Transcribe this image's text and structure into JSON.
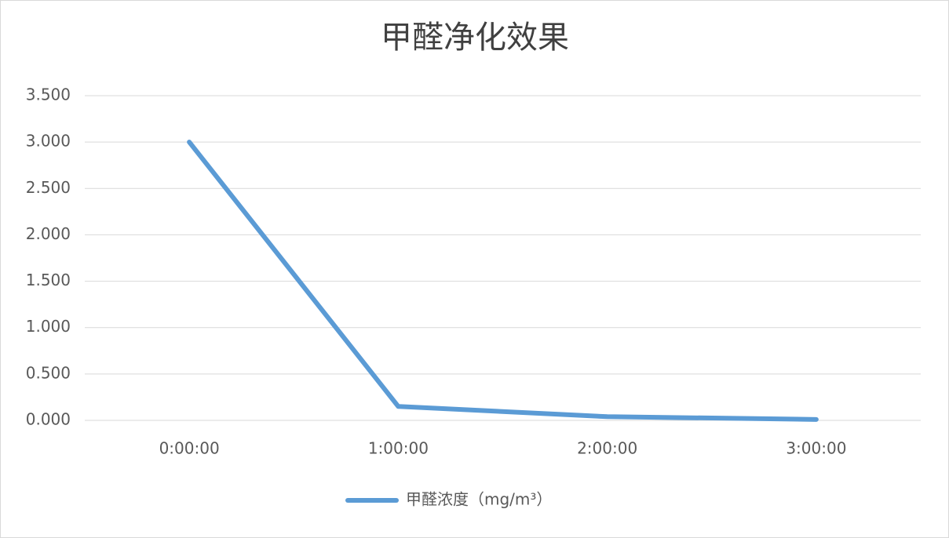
{
  "chart_data": {
    "type": "line",
    "title": "甲醛净化效果",
    "categories": [
      "0:00:00",
      "1:00:00",
      "2:00:00",
      "3:00:00"
    ],
    "series": [
      {
        "name": "甲醛浓度（mg/m³）",
        "color": "#5b9bd5",
        "values": [
          3.0,
          0.15,
          0.04,
          0.01
        ]
      }
    ],
    "ylim": [
      0,
      3.5
    ],
    "yticks": [
      {
        "value": 0,
        "label": "0.000"
      },
      {
        "value": 0.5,
        "label": "0.500"
      },
      {
        "value": 1,
        "label": "1.000"
      },
      {
        "value": 1.5,
        "label": "1.500"
      },
      {
        "value": 2,
        "label": "2.000"
      },
      {
        "value": 2.5,
        "label": "2.500"
      },
      {
        "value": 3,
        "label": "3.000"
      },
      {
        "value": 3.5,
        "label": "3.500"
      }
    ],
    "grid": true,
    "legend": "bottom"
  }
}
